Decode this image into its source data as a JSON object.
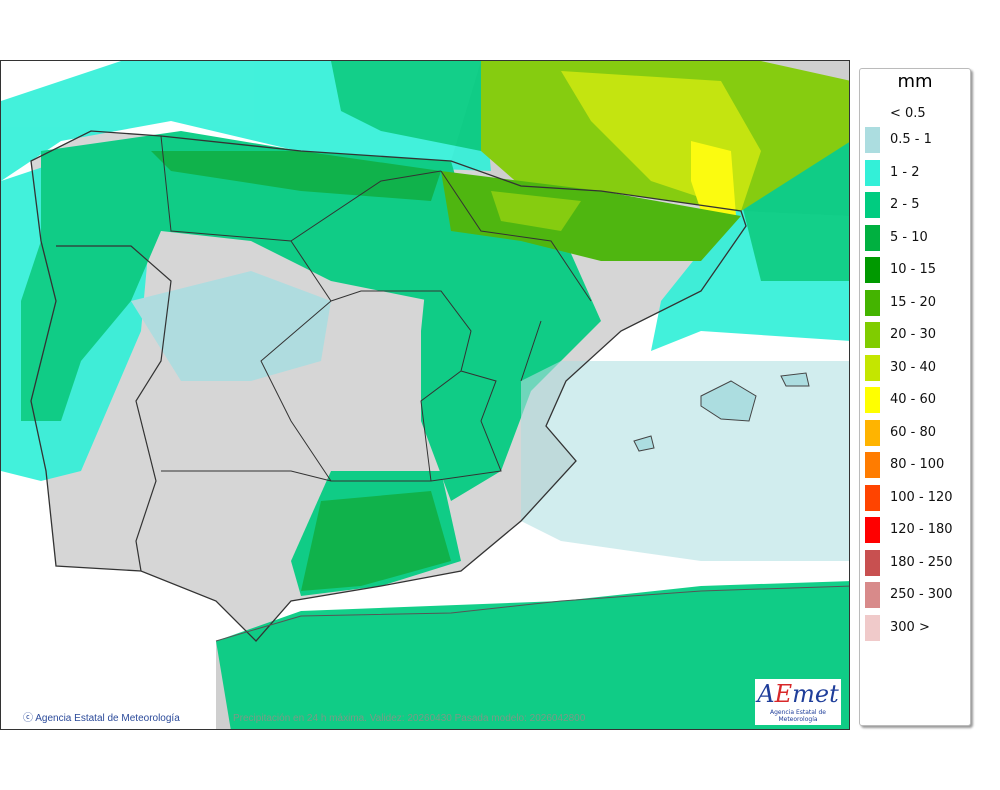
{
  "map": {
    "credit": "Agencia Estatal de Meteorología",
    "caption": "Precipitación en 24 h máxima. Validez: 20260430 Pasada modelo: 2026042800",
    "logo_text": "AEmet",
    "logo_subtext": "Agencia Estatal de Meteorología"
  },
  "legend": {
    "unit": "mm",
    "items": [
      {
        "label": "< 0.5",
        "color": ""
      },
      {
        "label": "0.5 - 1",
        "color": "#acdde0"
      },
      {
        "label": "1 - 2",
        "color": "#33f0d8"
      },
      {
        "label": "2 - 5",
        "color": "#00cc80"
      },
      {
        "label": "5 - 10",
        "color": "#00b040"
      },
      {
        "label": "10 - 15",
        "color": "#009900"
      },
      {
        "label": "15 - 20",
        "color": "#44b400"
      },
      {
        "label": "20 - 30",
        "color": "#80cc00"
      },
      {
        "label": "30 - 40",
        "color": "#c4e600"
      },
      {
        "label": "40 - 60",
        "color": "#ffff00"
      },
      {
        "label": "60 - 80",
        "color": "#ffb400"
      },
      {
        "label": "80 - 100",
        "color": "#ff7c00"
      },
      {
        "label": "100 - 120",
        "color": "#ff4400"
      },
      {
        "label": "120 - 180",
        "color": "#ff0000"
      },
      {
        "label": "180 - 250",
        "color": "#c85050"
      },
      {
        "label": "250 - 300",
        "color": "#d88a8a"
      },
      {
        "label": "300 >",
        "color": "#f0caca"
      }
    ]
  }
}
